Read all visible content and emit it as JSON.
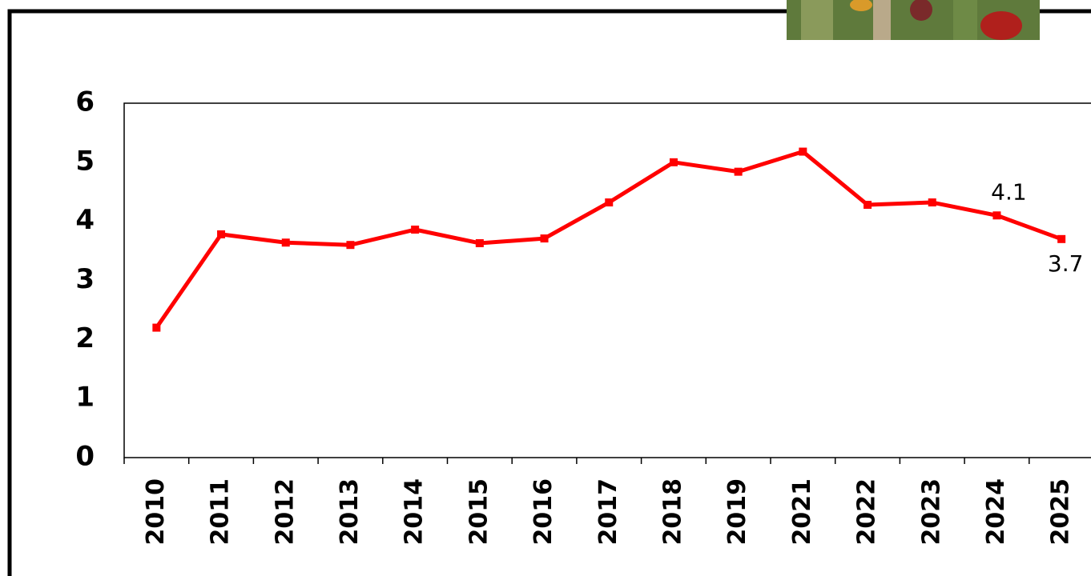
{
  "chart_data": {
    "type": "line",
    "categories": [
      "2010",
      "2011",
      "2012",
      "2013",
      "2014",
      "2015",
      "2016",
      "2017",
      "2018",
      "2019",
      "2021",
      "2022",
      "2023",
      "2024",
      "2025"
    ],
    "values": [
      2.2,
      3.78,
      3.64,
      3.6,
      3.86,
      3.63,
      3.71,
      4.32,
      5.0,
      4.84,
      5.18,
      4.28,
      4.32,
      4.1,
      3.7
    ],
    "value_labels": [
      null,
      null,
      null,
      null,
      null,
      null,
      null,
      null,
      null,
      null,
      null,
      null,
      null,
      "4.1",
      "3.7"
    ],
    "color": "#ff0000",
    "ylim": [
      0,
      6
    ],
    "yticks": [
      0,
      1,
      2,
      3,
      4,
      5,
      6
    ]
  }
}
